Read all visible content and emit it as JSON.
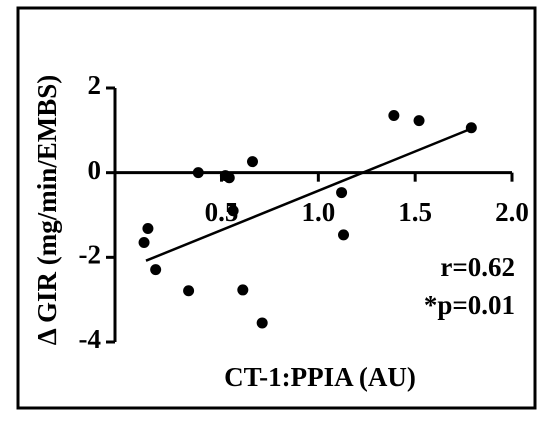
{
  "chart_data": {
    "type": "scatter",
    "y_label": "Δ GIR (mg/min/EMBS)",
    "x_label": "CT-1:PPIA (AU)",
    "annotations": [
      "r=0.62",
      "*p=0.01"
    ],
    "x": [
      0.1,
      0.12,
      0.16,
      0.33,
      0.38,
      0.52,
      0.54,
      0.66,
      0.56,
      0.61,
      0.71,
      1.12,
      1.13,
      1.39,
      1.52,
      1.79
    ],
    "values": [
      -1.65,
      -1.32,
      -2.29,
      -2.79,
      0.0,
      -0.07,
      -0.12,
      0.26,
      -0.9,
      -2.77,
      -3.55,
      -0.47,
      -1.47,
      1.35,
      1.23,
      1.06
    ],
    "fit": {
      "x": [
        0.11,
        1.79
      ],
      "y": [
        -2.08,
        1.04
      ]
    },
    "color": "#000000",
    "xlim": [
      -0.05,
      2.0
    ],
    "ylim": [
      -4,
      2
    ],
    "xticks": [
      0.5,
      {
        "value": 1.0,
        "label": "1.0"
      },
      1.5,
      {
        "value": 2.0,
        "label": "2.0"
      }
    ],
    "yticks": [
      -4,
      -2,
      0,
      2
    ]
  }
}
